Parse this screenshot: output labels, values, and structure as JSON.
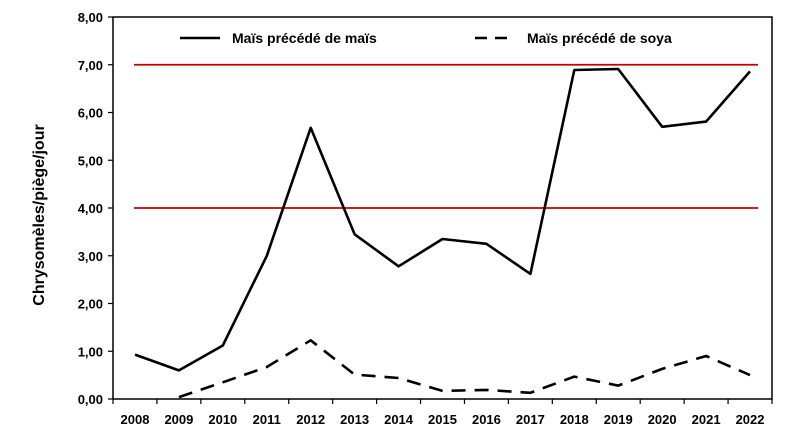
{
  "chart_data": {
    "type": "line",
    "title": "",
    "xlabel": "",
    "ylabel": "Chrysomèles/piège/jour",
    "categories": [
      "2008",
      "2009",
      "2010",
      "2011",
      "2012",
      "2013",
      "2014",
      "2015",
      "2016",
      "2017",
      "2018",
      "2019",
      "2020",
      "2021",
      "2022"
    ],
    "y_tick_labels": [
      "0,00",
      "1,00",
      "2,00",
      "3,00",
      "4,00",
      "5,00",
      "6,00",
      "7,00",
      "8,00"
    ],
    "ylim": [
      0,
      8
    ],
    "grid": false,
    "legend_position": "top",
    "series": [
      {
        "name": "Maïs précédé de maïs",
        "style": "solid",
        "color": "#000000",
        "values": [
          0.93,
          0.6,
          1.12,
          3.0,
          5.68,
          3.45,
          2.78,
          3.35,
          3.25,
          2.62,
          6.89,
          6.91,
          5.7,
          5.81,
          6.86
        ]
      },
      {
        "name": "Maïs précédé de soya",
        "style": "dashed",
        "color": "#000000",
        "values": [
          null,
          0.04,
          0.35,
          0.67,
          1.23,
          0.51,
          0.44,
          0.17,
          0.19,
          0.13,
          0.47,
          0.28,
          0.63,
          0.9,
          0.5
        ]
      }
    ],
    "threshold_lines": [
      {
        "value": 7.0,
        "color": "#c00000"
      },
      {
        "value": 4.0,
        "color": "#c00000"
      }
    ]
  }
}
